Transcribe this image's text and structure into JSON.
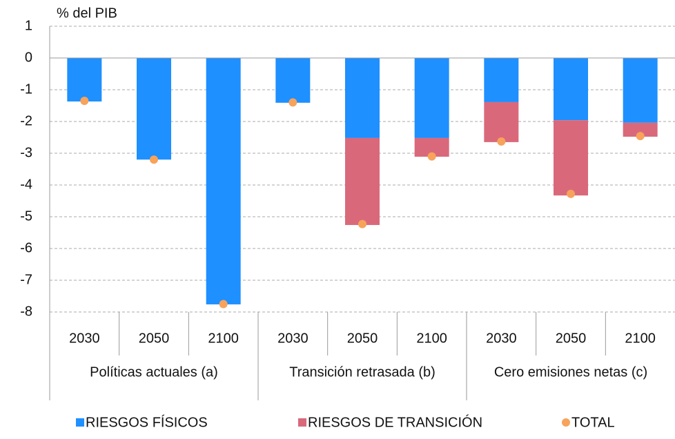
{
  "chart_data": {
    "type": "stacked-bar",
    "ylabel": "% del PIB",
    "categories": [
      "2030",
      "2050",
      "2100",
      "2030",
      "2050",
      "2100",
      "2030",
      "2050",
      "2100"
    ],
    "groups": [
      "Políticas actuales (a)",
      "Transición retrasada (b)",
      "Cero emisiones netas (c)"
    ],
    "series": [
      {
        "name": "RIESGOS FÍSICOS",
        "color": "#1e90ff",
        "values": [
          -1.37,
          -3.2,
          -7.76,
          -1.41,
          -2.52,
          -2.52,
          -1.39,
          -1.96,
          -2.04
        ]
      },
      {
        "name": "RIESGOS DE TRANSICIÓN",
        "color": "#d9697a",
        "values": [
          null,
          null,
          null,
          null,
          -2.74,
          -0.59,
          -1.26,
          -2.37,
          -0.44
        ]
      },
      {
        "name": "TOTAL",
        "type": "dot",
        "color": "#f7a35c",
        "values": [
          -1.35,
          -3.2,
          -7.75,
          -1.4,
          -5.23,
          -3.1,
          -2.63,
          -4.28,
          -2.46
        ]
      }
    ],
    "ylim": [
      -8,
      1
    ],
    "yticks": [
      1,
      0,
      -1,
      -2,
      -3,
      -4,
      -5,
      -6,
      -7,
      -8
    ],
    "grid": true
  }
}
